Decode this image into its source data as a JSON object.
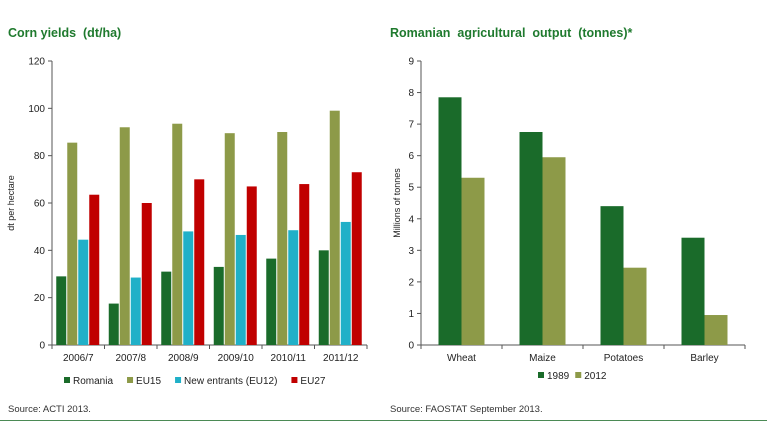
{
  "chart_data": [
    {
      "type": "bar",
      "title": "Corn yields  (dt/ha)",
      "ylabel": "dt per hectare",
      "xlabel": "",
      "ylim": [
        0,
        120
      ],
      "yticks": [
        0,
        20,
        40,
        60,
        80,
        100,
        120
      ],
      "categories": [
        "2006/7",
        "2007/8",
        "2008/9",
        "2009/10",
        "2010/11",
        "2011/12"
      ],
      "series": [
        {
          "name": "Romania",
          "color": "#1a6b2a",
          "values": [
            29,
            17.5,
            31,
            33,
            36.5,
            40
          ]
        },
        {
          "name": "EU15",
          "color": "#8d9a48",
          "values": [
            85.5,
            92,
            93.5,
            89.5,
            90,
            99
          ]
        },
        {
          "name": "New entrants (EU12)",
          "color": "#20b0c8",
          "values": [
            44.5,
            28.5,
            48,
            46.5,
            48.5,
            52
          ]
        },
        {
          "name": "EU27",
          "color": "#c00000",
          "values": [
            63.5,
            60,
            70,
            67,
            68,
            73
          ]
        }
      ],
      "legend_position": "bottom",
      "grid": false,
      "source": "Source: ACTI 2013."
    },
    {
      "type": "bar",
      "title": "Romanian  agricultural  output  (tonnes)*",
      "ylabel": "Millions of tonnes",
      "xlabel": "",
      "ylim": [
        0,
        9
      ],
      "yticks": [
        0,
        1,
        2,
        3,
        4,
        5,
        6,
        7,
        8,
        9
      ],
      "categories": [
        "Wheat",
        "Maize",
        "Potatoes",
        "Barley"
      ],
      "series": [
        {
          "name": "1989",
          "color": "#1a6b2a",
          "values": [
            7.85,
            6.75,
            4.4,
            3.4
          ]
        },
        {
          "name": "2012",
          "color": "#8d9a48",
          "values": [
            5.3,
            5.95,
            2.45,
            0.95
          ]
        }
      ],
      "legend_position": "bottom",
      "grid": false,
      "source": "Source: FAOSTAT  September 2013."
    }
  ]
}
